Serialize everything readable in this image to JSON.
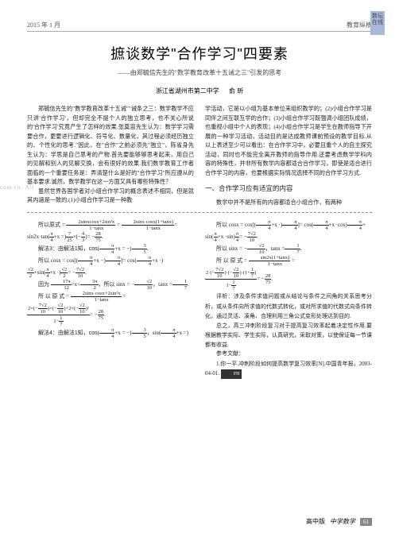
{
  "header": {
    "date": "2015 年 1 月",
    "section": "教育纵横",
    "tag_l1": "数坛",
    "tag_l2": "在线"
  },
  "watermark": "com.cn. All",
  "title": "摭谈数学\"合作学习\"四要素",
  "subtitle": "——由郑毓信先生的\"数学教育改革十五诫之三\"引发的思考",
  "author_affil": "浙江省湖州市第二中学",
  "author_name": "俞 昕",
  "body": {
    "left_p1": "郑毓信先生的\"数学教育改革十五诫\"\"诫条之三：数学教学不应只讲'合作学习'，但却完全不提个人的独立思考，也不关心所说的'合作学习'究竟产生了怎样的效果.张奠宙先生认为：数学学习需要合作，更要进行逻辑化、符号化、数量化，其过程必须经历独立的、个性化的思考.\"因此，在\"合作\"之前必须先\"独立\"，陈省身先生认为：学思是自己思考的产物.首先要能够够思考起来，用自己的见解和别人的见解交换，会有很好的效果.我们数学教育工作者面临的一个重要任务是：弄清楚什么是好的\"合作学习\"所应遵从的基本要求.诚然，数学教学在这一方面又具有哪些特殊性？",
    "left_p2": "虽然世界各国学者对小组合作学习的概念表述不相同，但是就其内涵是一致的.(1)小组合作学习是一种教",
    "right_p1": "学活动，它是以小组为基本单位来组织教学的；(2)小组合作学习是同伴之间互联互学的合作；(3)小组合作学习既强调小组团队成绩，也重视小组中个人的表现；(4)小组合作学习是学生在教师指导下开展的一种学习活动，活动目的是达成教师课前预设的教学目标.从以上表述至少可以看出：在合作学习中，必要且重个人的自主探究活动，同时也不能完全离开教师的指导作用.还要考虑数学学科内容的特殊性，并非所有数学内容都适合合作学习，即使是适合进行合作学习的内容，也要根据实际情况选择不同的合作学习方式.",
    "section1": "一、合作学习应有适宜的内容",
    "right_p2": "数学中并不是所有的内容都适合小组合作，有两种",
    "math_left_1": "所以原式 =",
    "math_left_1_frac_n": "2sinxcosx+2sin²x",
    "math_left_1_frac_d": "1−tanx",
    "math_left_1b": "=",
    "math_left_1b_frac_n": "2sinx·cosx(1+tanx)",
    "math_left_1b_frac_d": "1−tanx",
    "math_left_2": "sin2x·tan",
    "math_left_2_frac_n": "π",
    "math_left_2_frac_d": "4",
    "math_left_2b": "+x =",
    "math_left_2c_n": "7",
    "math_left_2c_d": "25",
    "math_left_2d": "×",
    "math_left_2e_n": "4",
    "math_left_2e_d": "3",
    "math_left_2f": "= −",
    "math_left_2g_n": "28",
    "math_left_2g_d": "75",
    "solution3": "解法3：由解法1知，cos",
    "sol3_a_n": "π",
    "sol3_a_d": "4",
    "sol3_b": "+x = −",
    "sol3_c_n": "3",
    "sol3_c_d": "5",
    "math_left_3": "所以 cosx = cos",
    "math_left_3b": "+x −",
    "math_left_3c": "= cos",
    "math_left_3d": "+x ·",
    "math_left_4_n": "√2",
    "math_left_4_d": "2",
    "math_left_4b": "+sin",
    "math_left_4c": "+x ·",
    "math_left_4d": "= −",
    "math_left_4e_n": "7√2",
    "math_left_4e_d": "10",
    "math_left_5": "因为",
    "math_left_5a_n": "17π",
    "math_left_5a_d": "12",
    "math_left_5b": "<x<",
    "math_left_5c_n": "3π",
    "math_left_5c_d": "2",
    "math_left_5d": "，所以 sinx = −",
    "math_left_5e_n": "√2",
    "math_left_5e_d": "10",
    "math_left_5f": "，tanx =",
    "math_left_5g_n": "1",
    "math_left_5g_d": "7",
    "math_left_6": "所 以 原 式 =",
    "math_left_6b_n": "2sinx·cosx+2sin²x",
    "math_left_6b_d": "1−tanx",
    "math_left_7": "2×",
    "math_left_7a": "−",
    "math_left_7b": "×",
    "math_left_7c": "+2×",
    "math_left_7d": "²",
    "math_left_8": "1−",
    "math_left_8a_n": "1",
    "math_left_8a_d": "7",
    "math_left_8b": "= −",
    "math_left_8c_n": "28",
    "math_left_8c_d": "75",
    "solution4": "解法4：由解法1知，cos",
    "sol4_a": "+x = −",
    "sol4_b": "，sin",
    "sol4_c": "+x =",
    "math_right_1": "所以 cosx = cos",
    "math_right_1a": "+x ·",
    "math_right_1b": "= cos",
    "math_right_1c": "+x ·cos",
    "math_right_1d": "+",
    "math_right_2": "sin",
    "math_right_2a": "+x ·sin",
    "math_right_2b": "= −",
    "math_right_2c_n": "7√2",
    "math_right_2c_d": "10",
    "math_right_3": "所以 sinx = −",
    "math_right_3a_n": "√2",
    "math_right_3a_d": "10",
    "math_right_3b": "，tanx =",
    "math_right_3c_n": "1",
    "math_right_3c_d": "7",
    "math_right_4": "所 以 原 式 =",
    "math_right_4b_n": "sin2x(1+tanx)",
    "math_right_4b_d": "1−tanx",
    "math_right_5a": "2·",
    "math_right_5b": "1+",
    "math_right_6": "1−",
    "math_right_6b": "= −",
    "math_right_6c_n": "28",
    "math_right_6c_d": "75",
    "analysis_label": "评析：",
    "analysis": "涉及条件求值问题或从结论与条件之间角的关系思考分析，或从条件向所求值的代数式转化，或对所求值的代数式向条件转化，通过灵活、凑角、合理利用三角公式变形处理达到目的.",
    "para2": "总之，高三冲刺阶段复习对于提高复习效率起着决定性作用.要根据教学实际、学生实际，认真研究，采取对策，以使保证每一节课都有收益.",
    "ref_label": "参考文献：",
    "ref1": "1.你一平.冲刺阶段如何提高数学复习效率[N].中国青年报，2003-04-01.",
    "ref_box": "FH"
  },
  "footer": {
    "level": "高中版",
    "brand": "中学数学",
    "page": "61"
  },
  "colors": {
    "text": "#222222",
    "border": "#aaaaaa",
    "tag_bg": "#a8b9d9",
    "watermark": "#b8b8b8",
    "footer_box": "#888888"
  }
}
